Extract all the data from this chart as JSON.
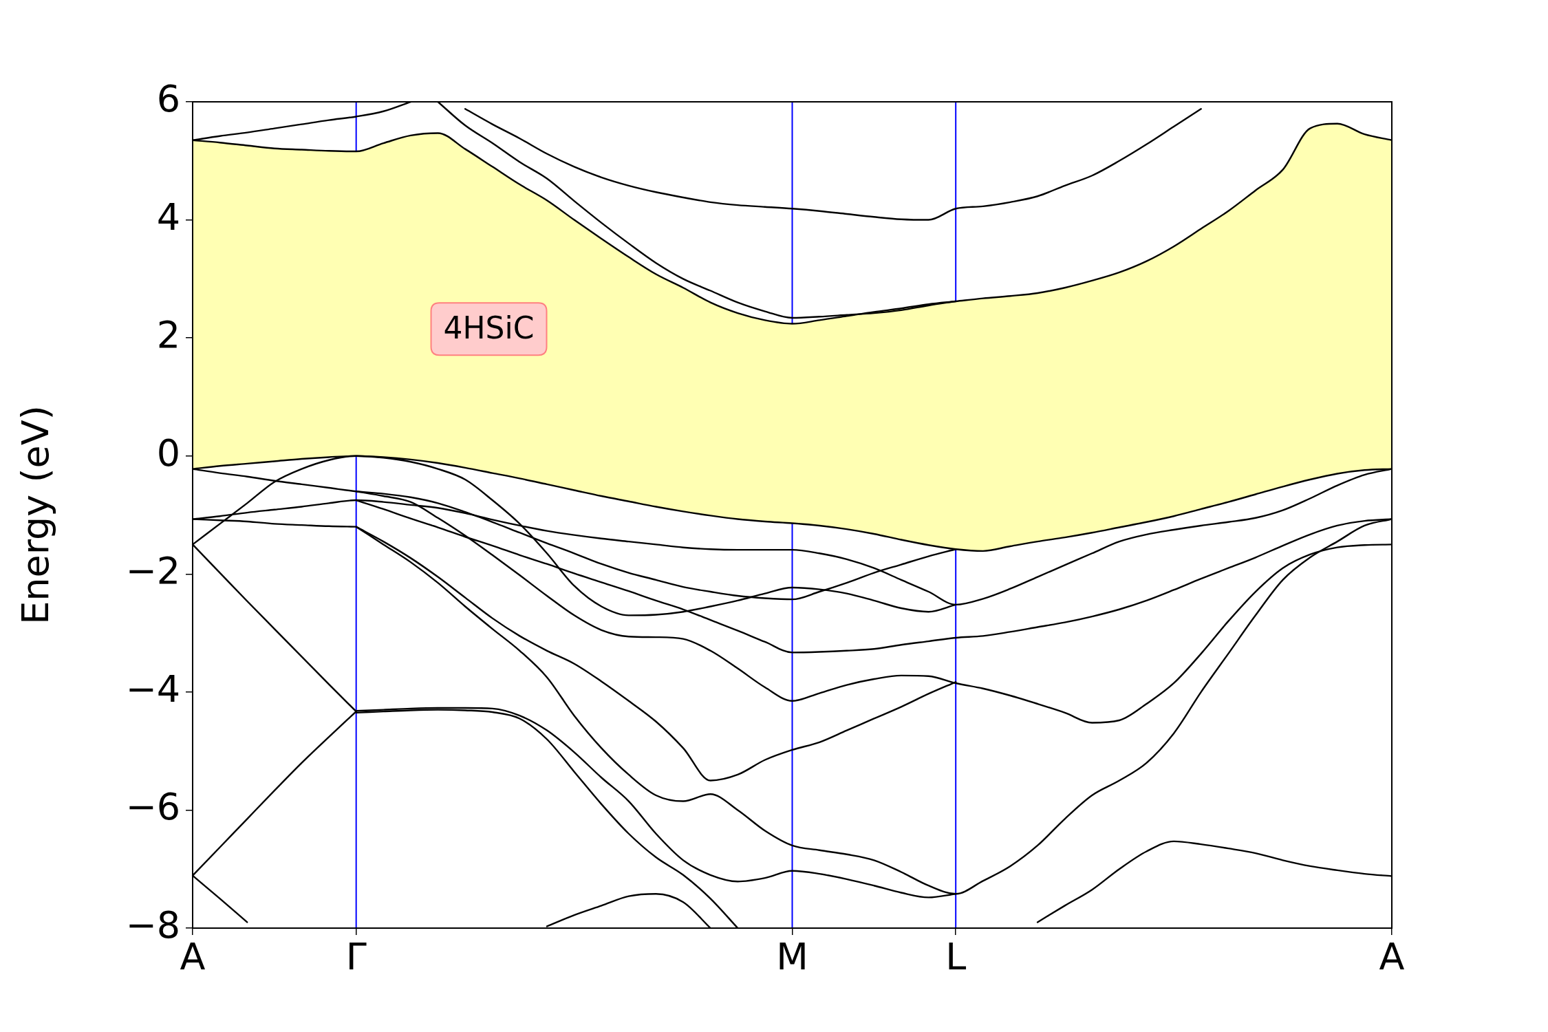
{
  "chart_data": {
    "type": "line",
    "ylabel": "Energy (eV)",
    "annotations": [
      "4HSiC"
    ],
    "categories": [
      "A",
      null,
      null,
      null,
      null,
      null,
      "Γ",
      null,
      null,
      null,
      null,
      null,
      null,
      null,
      null,
      null,
      null,
      null,
      null,
      null,
      null,
      null,
      "M",
      null,
      null,
      null,
      null,
      null,
      "L",
      null,
      null,
      null,
      null,
      null,
      null,
      null,
      null,
      null,
      null,
      null,
      null,
      null,
      null,
      null,
      "A"
    ],
    "ylim": [
      -8,
      6
    ],
    "yticks": [
      {
        "value": -8,
        "label": "−8"
      },
      {
        "value": -6,
        "label": "−6"
      },
      {
        "value": -4,
        "label": "−4"
      },
      {
        "value": -2,
        "label": "−2"
      },
      0,
      2,
      4,
      6
    ],
    "grid": false,
    "ref_lines": [
      {
        "axis": "x",
        "value": "Γ",
        "color": "#0000ff"
      },
      {
        "axis": "x",
        "value": "M",
        "color": "#0000ff"
      },
      {
        "axis": "x",
        "value": "L",
        "color": "#0000ff"
      }
    ],
    "series": [
      {
        "color": "#000000",
        "values": [
          5.35,
          5.31,
          5.26,
          5.21,
          5.19,
          5.17,
          5.16,
          5.3,
          5.43,
          5.47,
          5.2,
          4.9,
          4.6,
          4.33,
          4.0,
          3.68,
          3.37,
          3.08,
          2.85,
          2.6,
          2.42,
          2.3,
          2.24,
          2.3,
          2.37,
          2.44,
          2.5,
          2.57,
          2.62,
          2.67,
          2.71,
          2.76,
          2.85,
          2.97,
          3.11,
          3.3,
          3.55,
          3.85,
          4.15,
          4.5,
          4.85,
          5.55,
          5.63,
          5.45,
          5.35
        ],
        "upper": [
          5.35,
          5.31,
          5.26,
          5.21,
          5.19,
          5.17,
          5.16,
          5.3,
          5.43,
          5.47,
          5.2,
          4.9,
          4.6,
          4.33,
          4.0,
          3.68,
          3.37,
          3.08,
          2.85,
          2.6,
          2.42,
          2.3,
          2.24,
          2.3,
          2.37,
          2.44,
          2.5,
          2.57,
          2.62,
          2.67,
          2.71,
          2.76,
          2.85,
          2.97,
          3.11,
          3.3,
          3.55,
          3.85,
          4.15,
          4.5,
          4.85,
          5.55,
          5.63,
          5.45,
          5.35
        ],
        "lower": [
          -0.22,
          -0.17,
          -0.13,
          -0.09,
          -0.05,
          -0.02,
          0.0,
          -0.02,
          -0.06,
          -0.12,
          -0.2,
          -0.29,
          -0.38,
          -0.48,
          -0.58,
          -0.68,
          -0.77,
          -0.86,
          -0.94,
          -1.01,
          -1.07,
          -1.11,
          -1.14,
          -1.18,
          -1.24,
          -1.32,
          -1.42,
          -1.51,
          -1.58,
          -1.61,
          -1.53,
          -1.45,
          -1.38,
          -1.3,
          -1.21,
          -1.12,
          -1.02,
          -0.9,
          -0.78,
          -0.65,
          -0.52,
          -0.4,
          -0.3,
          -0.24,
          -0.22
        ]
      },
      {
        "color": "#000000",
        "values": [
          -0.22,
          -0.17,
          -0.13,
          -0.09,
          -0.05,
          -0.02,
          0.0,
          -0.02,
          -0.06,
          -0.12,
          -0.2,
          -0.29,
          -0.38,
          -0.48,
          -0.58,
          -0.68,
          -0.77,
          -0.86,
          -0.94,
          -1.01,
          -1.07,
          -1.11,
          -1.14,
          -1.18,
          -1.24,
          -1.32,
          -1.42,
          -1.51,
          -1.58,
          -1.61,
          -1.53,
          -1.45,
          -1.38,
          -1.3,
          -1.21,
          -1.12,
          -1.02,
          -0.9,
          -0.78,
          -0.65,
          -0.52,
          -0.4,
          -0.3,
          -0.24,
          -0.22
        ]
      },
      {
        "color": "#000000",
        "values": [
          5.35,
          5.42,
          5.48,
          5.55,
          5.62,
          5.69,
          5.75,
          5.84,
          6.0,
          null,
          null,
          null,
          null,
          null,
          null,
          null,
          null,
          null,
          null,
          null,
          null,
          null,
          null,
          null,
          null,
          null,
          null,
          null,
          null,
          null,
          null,
          null,
          null,
          null,
          null,
          null,
          null,
          null,
          null,
          null,
          null,
          null,
          null,
          null,
          null
        ]
      },
      {
        "color": "#000000",
        "values": [
          null,
          null,
          null,
          null,
          null,
          null,
          null,
          null,
          null,
          6.0,
          5.6,
          5.3,
          4.98,
          4.7,
          4.32,
          3.95,
          3.6,
          3.27,
          3.0,
          2.8,
          2.6,
          2.45,
          2.34,
          2.36,
          2.39,
          2.42,
          2.47,
          2.55,
          2.62,
          null,
          null,
          null,
          null,
          null,
          null,
          null,
          null,
          null,
          null,
          null,
          null,
          null,
          null,
          null,
          null
        ]
      },
      {
        "color": "#000000",
        "values": [
          null,
          null,
          null,
          null,
          null,
          null,
          null,
          null,
          null,
          null,
          5.88,
          5.62,
          5.38,
          5.12,
          4.9,
          4.72,
          4.58,
          4.47,
          4.38,
          4.3,
          4.25,
          4.22,
          4.19,
          4.15,
          4.1,
          4.05,
          4.01,
          4.0,
          4.19,
          4.23,
          4.3,
          4.4,
          4.58,
          4.75,
          5.0,
          5.28,
          5.58,
          5.88,
          null,
          null,
          null,
          null,
          null,
          null,
          null
        ]
      },
      {
        "color": "#000000",
        "values": [
          -1.5,
          -1.15,
          -0.8,
          -0.44,
          -0.22,
          -0.07,
          0.0,
          -0.03,
          -0.1,
          -0.22,
          -0.4,
          -0.75,
          -1.15,
          -1.65,
          -2.2,
          -2.55,
          -2.7,
          -2.69,
          -2.64,
          -2.55,
          -2.45,
          -2.33,
          -2.23,
          -2.26,
          -2.33,
          -2.45,
          -2.58,
          -2.64,
          -2.52,
          null,
          null,
          null,
          null,
          null,
          null,
          null,
          null,
          null,
          null,
          null,
          null,
          null,
          null,
          null,
          null
        ]
      },
      {
        "color": "#000000",
        "values": [
          -0.22,
          -0.29,
          -0.35,
          -0.42,
          -0.48,
          -0.54,
          -0.6,
          -0.64,
          -0.7,
          -0.8,
          -0.95,
          -1.12,
          -1.3,
          -1.48,
          -1.65,
          -1.83,
          -1.98,
          -2.1,
          -2.22,
          -2.3,
          -2.37,
          -2.41,
          -2.43,
          -2.3,
          -2.15,
          -1.98,
          -1.84,
          -1.7,
          -1.58,
          null,
          null,
          null,
          null,
          null,
          null,
          null,
          null,
          null,
          null,
          null,
          null,
          null,
          null,
          null,
          null
        ]
      },
      {
        "color": "#000000",
        "values": [
          -1.07,
          -1.02,
          -0.96,
          -0.91,
          -0.86,
          -0.8,
          -0.75,
          -0.78,
          -0.83,
          -0.88,
          -0.97,
          -1.08,
          -1.18,
          -1.27,
          -1.34,
          -1.4,
          -1.45,
          -1.5,
          -1.55,
          -1.58,
          -1.59,
          -1.59,
          -1.59,
          -1.65,
          -1.75,
          -1.9,
          -2.1,
          -2.3,
          -2.52,
          -2.42,
          -2.25,
          -2.05,
          -1.85,
          -1.65,
          -1.45,
          -1.33,
          -1.25,
          -1.18,
          -1.12,
          -1.05,
          -0.92,
          -0.72,
          -0.5,
          -0.32,
          -0.22
        ]
      },
      {
        "color": "#000000",
        "values": [
          -1.07,
          -1.09,
          -1.11,
          -1.15,
          -1.17,
          -1.19,
          -1.2,
          null,
          null,
          null,
          null,
          null,
          null,
          null,
          null,
          null,
          null,
          null,
          null,
          null,
          null,
          null,
          null,
          null,
          null,
          null,
          null,
          null,
          null,
          null,
          null,
          null,
          null,
          null,
          null,
          null,
          null,
          null,
          null,
          null,
          null,
          null,
          null,
          null,
          null
        ]
      },
      {
        "color": "#000000",
        "values": [
          null,
          null,
          null,
          null,
          null,
          null,
          -0.75,
          -0.9,
          -1.06,
          -1.21,
          -1.37,
          -1.52,
          -1.68,
          -1.83,
          -1.99,
          -2.14,
          -2.29,
          -2.45,
          -2.6,
          -2.78,
          -2.96,
          -3.15,
          -3.33,
          -3.32,
          -3.3,
          -3.27,
          -3.2,
          -3.14,
          -3.08,
          -3.05,
          -2.98,
          -2.9,
          -2.82,
          -2.72,
          -2.6,
          -2.45,
          -2.27,
          -2.08,
          -1.9,
          -1.72,
          -1.52,
          -1.33,
          -1.18,
          -1.1,
          -1.07
        ]
      },
      {
        "color": "#000000",
        "values": [
          null,
          null,
          null,
          null,
          null,
          null,
          -0.6,
          -0.68,
          -0.78,
          -1.05,
          -1.35,
          -1.68,
          -2.02,
          -2.37,
          -2.7,
          -2.95,
          -3.06,
          -3.07,
          -3.1,
          -3.3,
          -3.6,
          -3.92,
          -4.15,
          -4.02,
          -3.88,
          -3.78,
          -3.72,
          -3.73,
          -3.85,
          -3.94,
          -4.06,
          -4.2,
          -4.35,
          -4.52,
          -4.48,
          -4.2,
          -3.85,
          -3.35,
          -2.8,
          -2.3,
          -1.9,
          -1.67,
          -1.55,
          -1.51,
          -1.5
        ]
      },
      {
        "color": "#000000",
        "values": [
          null,
          null,
          null,
          null,
          null,
          null,
          -1.2,
          -1.45,
          -1.73,
          -2.05,
          -2.4,
          -2.75,
          -3.05,
          -3.3,
          -3.52,
          -3.82,
          -4.15,
          -4.5,
          -4.95,
          -5.5,
          -5.4,
          -5.15,
          -4.98,
          -4.85,
          -4.65,
          -4.45,
          -4.25,
          -4.03,
          -3.83,
          null,
          null,
          null,
          null,
          null,
          null,
          null,
          null,
          null,
          null,
          null,
          null,
          null,
          null,
          null,
          null
        ]
      },
      {
        "color": "#000000",
        "values": [
          null,
          null,
          null,
          null,
          null,
          null,
          -1.2,
          -1.5,
          -1.8,
          -2.15,
          -2.55,
          -2.93,
          -3.3,
          -3.75,
          -4.4,
          -4.95,
          -5.4,
          -5.75,
          -5.85,
          -5.73,
          -6.0,
          -6.35,
          -6.6,
          -6.68,
          -6.75,
          -6.85,
          -7.05,
          -7.28,
          -7.42,
          -7.2,
          -6.95,
          -6.6,
          -6.15,
          -5.75,
          -5.5,
          -5.2,
          -4.7,
          -4.0,
          -3.35,
          -2.7,
          -2.1,
          -1.72,
          -1.45,
          -1.18,
          -1.07
        ]
      },
      {
        "color": "#000000",
        "values": [
          null,
          null,
          null,
          null,
          null,
          null,
          -4.32,
          -4.3,
          -4.28,
          -4.27,
          -4.27,
          -4.28,
          -4.4,
          -4.65,
          -5.02,
          -5.45,
          -5.85,
          -6.4,
          -6.85,
          -7.1,
          -7.21,
          -7.15,
          -7.03,
          -7.08,
          -7.17,
          -7.28,
          -7.4,
          -7.48,
          -7.42,
          null,
          null,
          null,
          null,
          null,
          null,
          null,
          null,
          null,
          null,
          null,
          null,
          null,
          null,
          null,
          null
        ]
      },
      {
        "color": "#000000",
        "values": [
          null,
          null,
          null,
          null,
          null,
          null,
          -4.35,
          -4.33,
          -4.31,
          -4.3,
          -4.31,
          -4.34,
          -4.45,
          -4.8,
          -5.35,
          -5.9,
          -6.4,
          -6.8,
          -7.1,
          -7.5,
          -8.0,
          null,
          null,
          null,
          null,
          null,
          null,
          null,
          null,
          null,
          null,
          null,
          null,
          null,
          null,
          null,
          null,
          null,
          null,
          null,
          null,
          null,
          null,
          null,
          null
        ]
      },
      {
        "color": "#000000",
        "values": [
          -1.5,
          -1.98,
          -2.46,
          -2.93,
          -3.4,
          -3.87,
          -4.33,
          null,
          null,
          null,
          null,
          null,
          null,
          null,
          null,
          null,
          null,
          null,
          null,
          null,
          null,
          null,
          null,
          null,
          null,
          null,
          null,
          null,
          null,
          null,
          null,
          null,
          null,
          null,
          null,
          null,
          null,
          null,
          null,
          null,
          null,
          null,
          null,
          null,
          null
        ]
      },
      {
        "color": "#000000",
        "values": [
          -7.11,
          -6.63,
          -6.15,
          -5.67,
          -5.2,
          -4.76,
          -4.33,
          null,
          null,
          null,
          null,
          null,
          null,
          null,
          null,
          null,
          null,
          null,
          null,
          null,
          null,
          null,
          null,
          null,
          null,
          null,
          null,
          null,
          null,
          null,
          null,
          null,
          null,
          null,
          null,
          null,
          null,
          null,
          null,
          null,
          null,
          null,
          null,
          null,
          null
        ]
      },
      {
        "color": "#000000",
        "values": [
          -7.11,
          -7.5,
          -7.9,
          null,
          null,
          null,
          null,
          null,
          null,
          null,
          null,
          null,
          null,
          null,
          null,
          null,
          null,
          null,
          null,
          null,
          null,
          null,
          null,
          null,
          null,
          null,
          null,
          null,
          null,
          null,
          null,
          null,
          null,
          null,
          null,
          null,
          null,
          null,
          null,
          null,
          null,
          null,
          null,
          null,
          null
        ]
      },
      {
        "color": "#000000",
        "values": [
          null,
          null,
          null,
          null,
          null,
          null,
          null,
          null,
          null,
          null,
          null,
          null,
          null,
          -7.97,
          -7.78,
          -7.62,
          -7.46,
          -7.42,
          -7.56,
          -8.0,
          null,
          null,
          null,
          null,
          null,
          null,
          null,
          null,
          null,
          null,
          null,
          null,
          null,
          null,
          null,
          null,
          null,
          null,
          null,
          null,
          null,
          null,
          null,
          null,
          null
        ]
      },
      {
        "color": "#000000",
        "values": [
          null,
          null,
          null,
          null,
          null,
          null,
          null,
          null,
          null,
          null,
          null,
          null,
          null,
          null,
          null,
          null,
          null,
          null,
          null,
          null,
          null,
          null,
          null,
          null,
          null,
          null,
          null,
          null,
          null,
          null,
          null,
          -7.9,
          -7.62,
          -7.35,
          -7.0,
          -6.7,
          -6.53,
          -6.58,
          -6.65,
          -6.73,
          -6.85,
          -6.95,
          -7.02,
          -7.08,
          -7.12
        ]
      }
    ]
  }
}
